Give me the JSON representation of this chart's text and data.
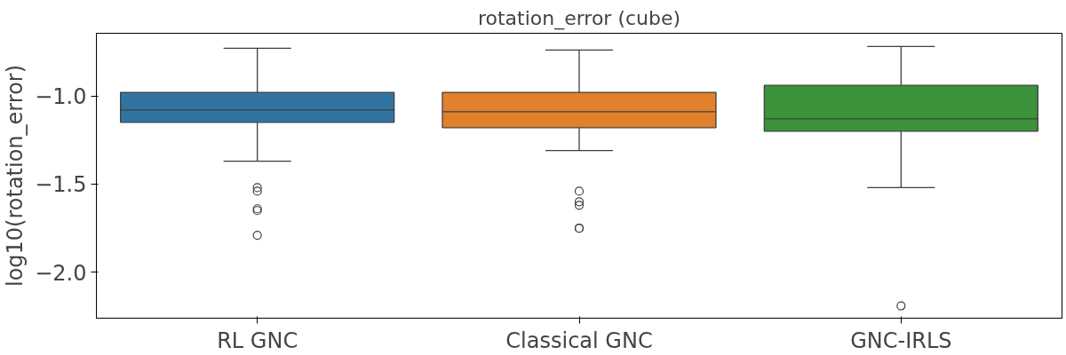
{
  "chart_data": {
    "type": "box",
    "title": "rotation_error (cube)",
    "ylabel": "log10(rotation_error)",
    "categories": [
      "RL GNC",
      "Classical GNC",
      "GNC-IRLS"
    ],
    "colors": [
      "#3274a1",
      "#e1812c",
      "#3a923a"
    ],
    "boxes": [
      {
        "low": -1.37,
        "q1": -1.15,
        "median": -1.08,
        "q3": -0.98,
        "high": -0.73,
        "outliers": [
          -1.52,
          -1.54,
          -1.64,
          -1.65,
          -1.79
        ]
      },
      {
        "low": -1.31,
        "q1": -1.18,
        "median": -1.09,
        "q3": -0.98,
        "high": -0.74,
        "outliers": [
          -1.54,
          -1.6,
          -1.62,
          -1.75,
          -1.75
        ]
      },
      {
        "low": -1.52,
        "q1": -1.2,
        "median": -1.13,
        "q3": -0.94,
        "high": -0.72,
        "outliers": [
          -2.19
        ]
      }
    ],
    "ylim": [
      -2.26,
      -0.645
    ],
    "yticks": [
      {
        "value": -2.0,
        "label": "−2.0"
      },
      {
        "value": -1.5,
        "label": "−1.5"
      },
      {
        "value": -1.0,
        "label": "−1.0"
      }
    ],
    "grid": false
  }
}
